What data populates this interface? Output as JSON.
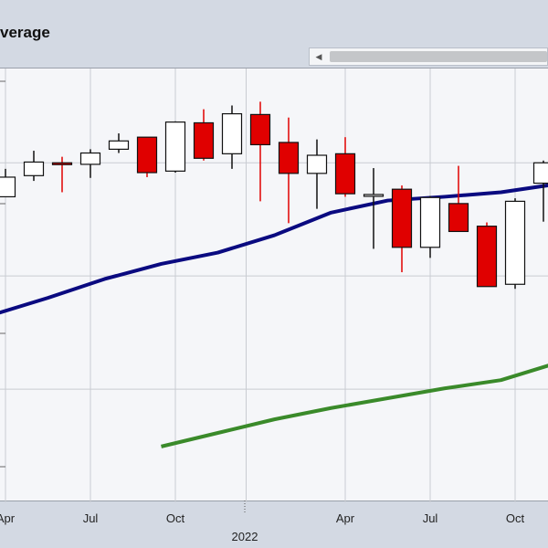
{
  "header": {
    "title": "verage"
  },
  "scrollbar": {
    "left_arrow_icon": "chevron-left-icon"
  },
  "colors": {
    "up_body": "#ffffff",
    "down_body": "#e00000",
    "ma_short": "#0a0a80",
    "ma_long": "#3a8a2a",
    "plot_bg": "#f5f6f9",
    "page_bg": "#d3d9e3"
  },
  "chart_data": {
    "type": "candlestick",
    "title": "",
    "xlabel": "",
    "ylabel": "",
    "grid": true,
    "x_tick_labels": [
      "Apr",
      "Jul",
      "Oct",
      "Apr",
      "Jul",
      "Oct"
    ],
    "year_label": "2022",
    "y_range_units": "unlabeled",
    "candles": [
      {
        "x": 0.0,
        "open": 80.5,
        "close": 83.1,
        "high": 84.2,
        "low": 80.5
      },
      {
        "x": 1.0,
        "open": 83.3,
        "close": 85.1,
        "high": 86.6,
        "low": 82.6
      },
      {
        "x": 2.0,
        "open": 85.0,
        "close": 84.8,
        "high": 85.8,
        "low": 81.1
      },
      {
        "x": 3.0,
        "open": 84.8,
        "close": 86.3,
        "high": 86.8,
        "low": 83.0
      },
      {
        "x": 4.0,
        "open": 86.8,
        "close": 87.9,
        "high": 88.9,
        "low": 86.3
      },
      {
        "x": 5.0,
        "open": 88.4,
        "close": 83.7,
        "high": 88.4,
        "low": 83.1
      },
      {
        "x": 6.0,
        "open": 83.9,
        "close": 90.4,
        "high": 90.5,
        "low": 83.7
      },
      {
        "x": 7.0,
        "open": 90.3,
        "close": 85.6,
        "high": 92.1,
        "low": 85.3
      },
      {
        "x": 8.0,
        "open": 86.2,
        "close": 91.5,
        "high": 92.6,
        "low": 84.2
      },
      {
        "x": 9.0,
        "open": 91.4,
        "close": 87.4,
        "high": 93.1,
        "low": 79.9
      },
      {
        "x": 10.0,
        "open": 87.7,
        "close": 83.6,
        "high": 91.0,
        "low": 77.0
      },
      {
        "x": 11.0,
        "open": 83.6,
        "close": 86.0,
        "high": 88.1,
        "low": 78.9
      },
      {
        "x": 12.0,
        "open": 86.2,
        "close": 80.9,
        "high": 88.4,
        "low": 80.5
      },
      {
        "x": 13.0,
        "open": 80.8,
        "close": 80.8,
        "high": 84.3,
        "low": 73.6
      },
      {
        "x": 14.0,
        "open": 81.5,
        "close": 73.8,
        "high": 82.0,
        "low": 70.5
      },
      {
        "x": 15.0,
        "open": 73.8,
        "close": 80.4,
        "high": 80.6,
        "low": 72.4
      },
      {
        "x": 16.0,
        "open": 79.6,
        "close": 75.9,
        "high": 84.6,
        "low": 75.9
      },
      {
        "x": 17.0,
        "open": 76.6,
        "close": 68.6,
        "high": 77.1,
        "low": 68.6
      },
      {
        "x": 18.0,
        "open": 68.9,
        "close": 79.9,
        "high": 80.3,
        "low": 68.3
      },
      {
        "x": 19.0,
        "open": 82.3,
        "close": 85.0,
        "high": 85.3,
        "low": 77.2
      }
    ],
    "series": [
      {
        "values_xy": [
          [
            -0.5,
            64.8
          ],
          [
            1.5,
            67.1
          ],
          [
            3.5,
            69.6
          ],
          [
            5.5,
            71.6
          ],
          [
            7.5,
            73.1
          ],
          [
            9.5,
            75.4
          ],
          [
            11.5,
            78.4
          ],
          [
            13.5,
            80.0
          ],
          [
            15.5,
            80.5
          ],
          [
            17.5,
            81.1
          ],
          [
            19.5,
            82.2
          ]
        ]
      },
      {
        "values_xy": [
          [
            5.5,
            47.4
          ],
          [
            7.5,
            49.2
          ],
          [
            9.5,
            51.0
          ],
          [
            11.5,
            52.5
          ],
          [
            13.5,
            53.8
          ],
          [
            15.5,
            55.1
          ],
          [
            17.5,
            56.2
          ],
          [
            19.5,
            58.5
          ]
        ]
      }
    ]
  }
}
